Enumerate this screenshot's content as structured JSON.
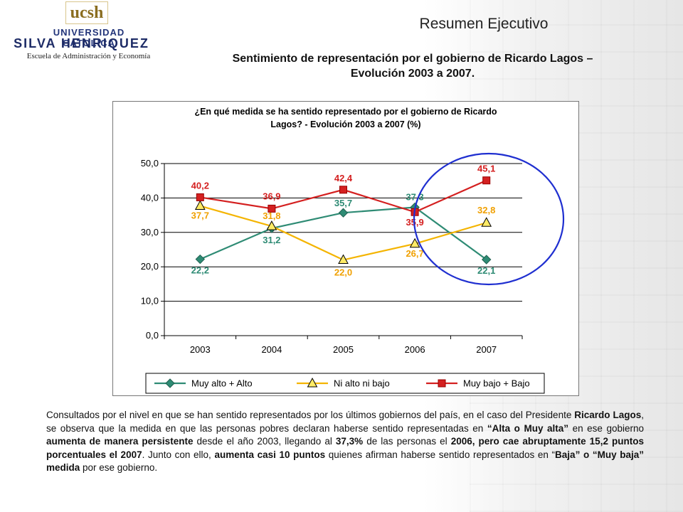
{
  "header": {
    "logo_ucsh": "ucsh",
    "logo_universidad": "UNIVERSIDAD CATOLICA",
    "logo_silva": "SILVA HENRIQUEZ",
    "logo_escuela": "Escuela de Administración y Economía",
    "title": "Resumen Ejecutivo",
    "subtitle_line1": "Sentimiento de representación por el gobierno de Ricardo Lagos –",
    "subtitle_line2": "Evolución 2003 a 2007."
  },
  "chart_data": {
    "type": "line",
    "title_line1": "¿En qué medida se ha sentido representado por el gobierno de Ricardo",
    "title_line2": "Lagos?  - Evolución 2003 a 2007 (%)",
    "categories": [
      "2003",
      "2004",
      "2005",
      "2006",
      "2007"
    ],
    "ylim": [
      0,
      50
    ],
    "yticks": [
      "0,0",
      "10,0",
      "20,0",
      "30,0",
      "40,0",
      "50,0"
    ],
    "grid": true,
    "legend_position": "bottom",
    "series": [
      {
        "name": "Muy alto + Alto",
        "color": "#2e8b74",
        "marker": "diamond",
        "values": [
          22.2,
          31.2,
          35.7,
          37.3,
          22.1
        ],
        "labels": [
          "22,2",
          "31,2",
          "35,7",
          "37,3",
          "22,1"
        ]
      },
      {
        "name": "Ni alto ni bajo",
        "color": "#f4b400",
        "marker": "triangle",
        "values": [
          37.7,
          31.8,
          22.0,
          26.7,
          32.8
        ],
        "labels": [
          "37,7",
          "31,8",
          "22,0",
          "26,7",
          "32,8"
        ]
      },
      {
        "name": "Muy bajo + Bajo",
        "color": "#d42020",
        "marker": "square",
        "values": [
          40.2,
          36.9,
          42.4,
          35.9,
          45.1
        ],
        "labels": [
          "40,2",
          "36,9",
          "42,4",
          "35,9",
          "45,1"
        ]
      }
    ],
    "highlight_color": "#1f2fd0"
  },
  "paragraph": {
    "p1": "Consultados por el nivel en que se han sentido representados por los últimos gobiernos del país, en el caso del Presidente ",
    "b1": "Ricardo Lagos",
    "p2": ", se observa que la medida en que las personas pobres declaran haberse sentido representadas en ",
    "b2": "“Alta o Muy alta”",
    "p3": " en ese gobierno ",
    "b3": "aumenta de manera persistente",
    "p4": " desde el año 2003, llegando al ",
    "b4": "37,3%",
    "p5": " de las personas el ",
    "b5": "2006, pero cae abruptamente 15,2 puntos porcentuales el 2007",
    "p6": ". Junto con ello, ",
    "b6": "aumenta casi 10 puntos",
    "p7": " quienes afirman haberse sentido representados en “",
    "b7": "Baja” o “Muy baja” medida",
    "p8": " por ese gobierno."
  }
}
